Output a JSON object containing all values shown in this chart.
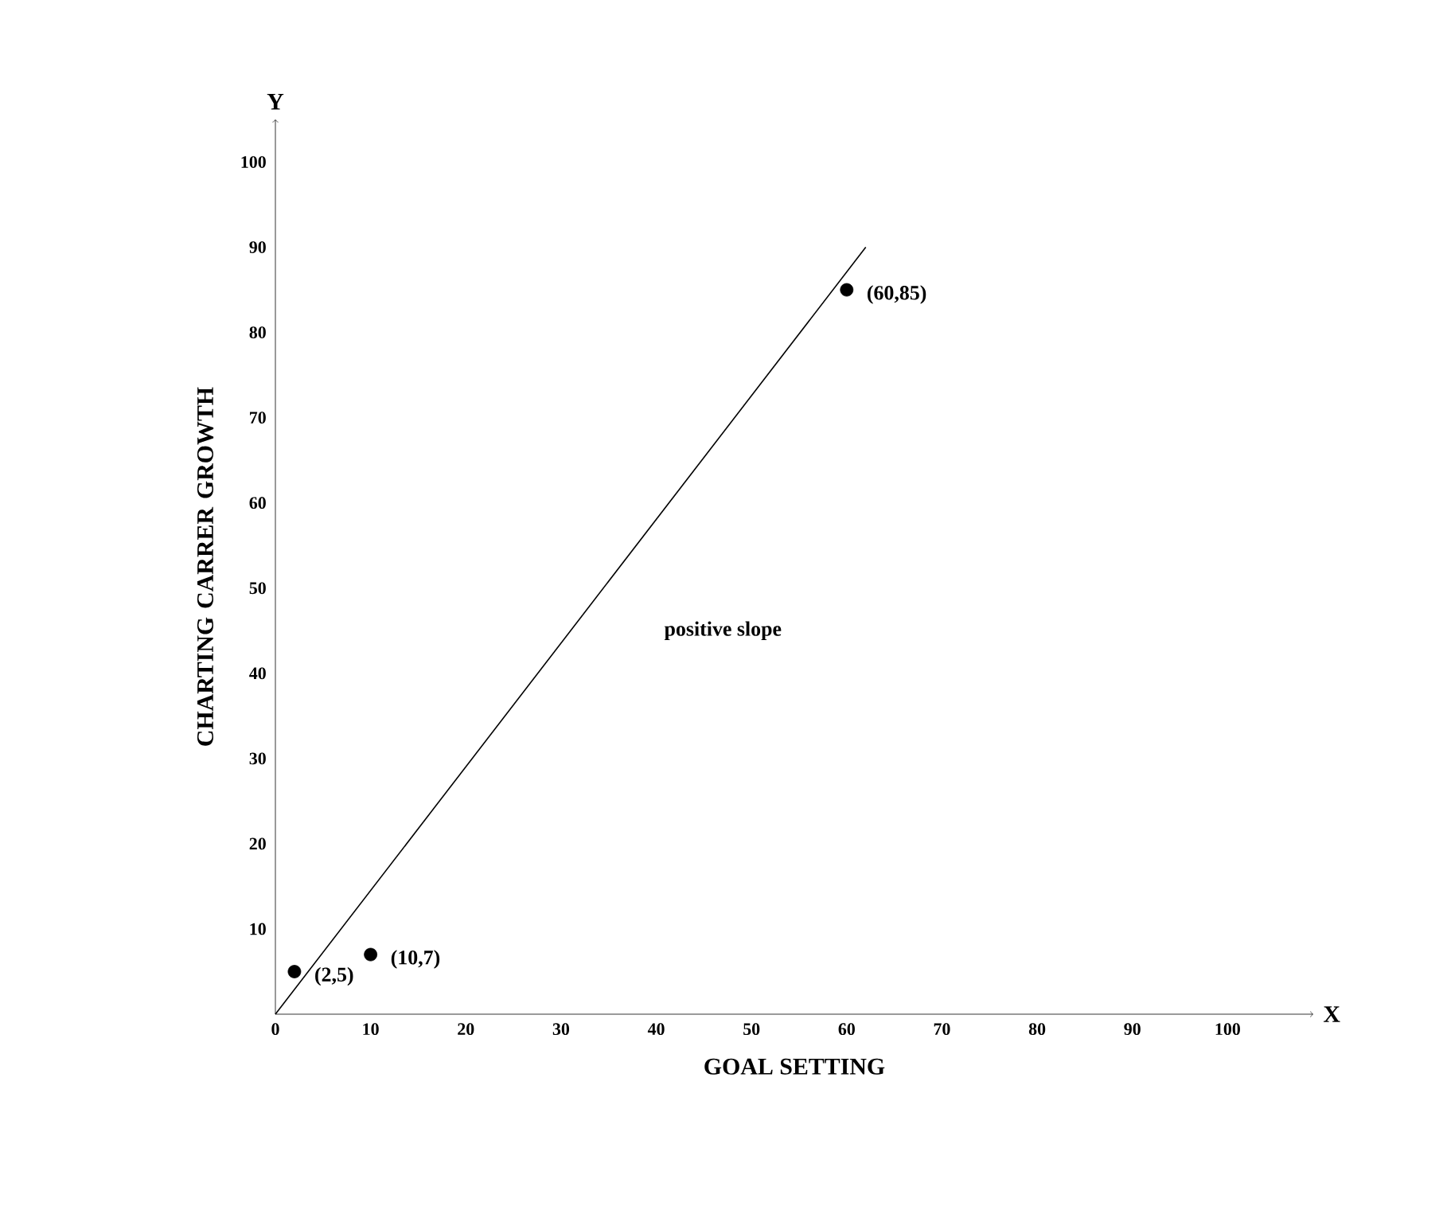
{
  "chart_data": {
    "type": "scatter",
    "xlabel": "GOAL SETTING",
    "ylabel": "CHARTING CARRER GROWTH",
    "xlim": [
      0,
      109
    ],
    "ylim": [
      0,
      105
    ],
    "xticks": [
      0,
      10,
      20,
      30,
      40,
      50,
      60,
      70,
      80,
      90,
      100
    ],
    "yticks": [
      10,
      20,
      30,
      40,
      50,
      60,
      70,
      80,
      90,
      100
    ],
    "grid": false,
    "series": [
      {
        "color": "#000000",
        "marker": "circle",
        "x": [
          2,
          10,
          60
        ],
        "values": [
          5,
          7,
          85
        ]
      },
      {
        "type": "line",
        "color": "#000000",
        "marker": "none",
        "line_style": "solid",
        "x": [
          0,
          62
        ],
        "values": [
          0,
          90
        ]
      }
    ],
    "annotations": [
      {
        "text": "(2,5)",
        "x": 2,
        "y": 5
      },
      {
        "text": "(10,7)",
        "x": 10,
        "y": 7
      },
      {
        "text": "(60,85)",
        "x": 60,
        "y": 85
      },
      "positive slope",
      "X",
      "Y"
    ]
  }
}
